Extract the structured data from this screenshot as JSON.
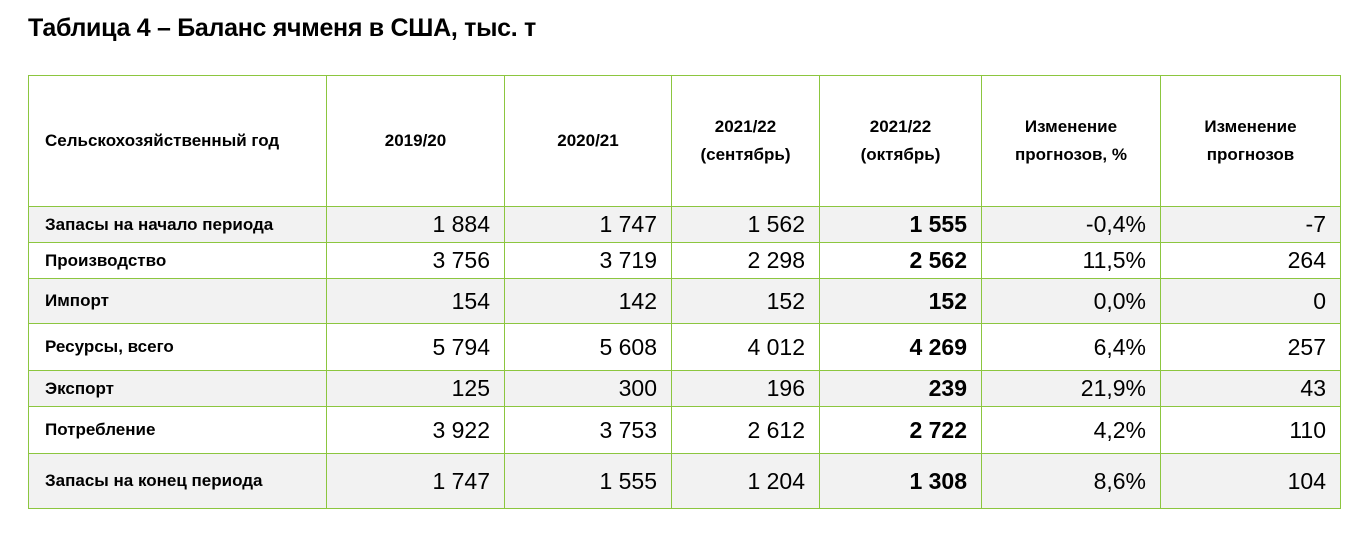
{
  "title": "Таблица 4 – Баланс ячменя в США, тыс. т",
  "header": {
    "col0": "Сельскохозяйственный год",
    "col1": "2019/20",
    "col2": "2020/21",
    "col3_line1": "2021/22",
    "col3_line2": "(сентябрь)",
    "col4_line1": "2021/22",
    "col4_line2": "(октябрь)",
    "col5_line1": "Изменение",
    "col5_line2": "прогнозов, %",
    "col6_line1": "Изменение",
    "col6_line2": "прогнозов"
  },
  "rows": [
    {
      "label": "Запасы на начало периода",
      "v1": "1 884",
      "v2": "1 747",
      "v3": "1 562",
      "v4": "1 555",
      "v5": "-0,4%",
      "v6": "-7"
    },
    {
      "label": "Производство",
      "v1": "3 756",
      "v2": "3 719",
      "v3": "2 298",
      "v4": "2 562",
      "v5": "11,5%",
      "v6": "264"
    },
    {
      "label": "Импорт",
      "v1": "154",
      "v2": "142",
      "v3": "152",
      "v4": "152",
      "v5": "0,0%",
      "v6": "0"
    },
    {
      "label": "Ресурсы, всего",
      "v1": "5 794",
      "v2": "5 608",
      "v3": "4 012",
      "v4": "4 269",
      "v5": "6,4%",
      "v6": "257"
    },
    {
      "label": "Экспорт",
      "v1": "125",
      "v2": "300",
      "v3": "196",
      "v4": "239",
      "v5": "21,9%",
      "v6": "43"
    },
    {
      "label": "Потребление",
      "v1": "3 922",
      "v2": "3 753",
      "v3": "2 612",
      "v4": "2 722",
      "v5": "4,2%",
      "v6": "110"
    },
    {
      "label": "Запасы на конец периода",
      "v1": "1 747",
      "v2": "1 555",
      "v3": "1 204",
      "v4": "1 308",
      "v5": "8,6%",
      "v6": "104"
    }
  ],
  "colors": {
    "border": "#8cc63f",
    "row_shade": "#f2f2f2"
  }
}
